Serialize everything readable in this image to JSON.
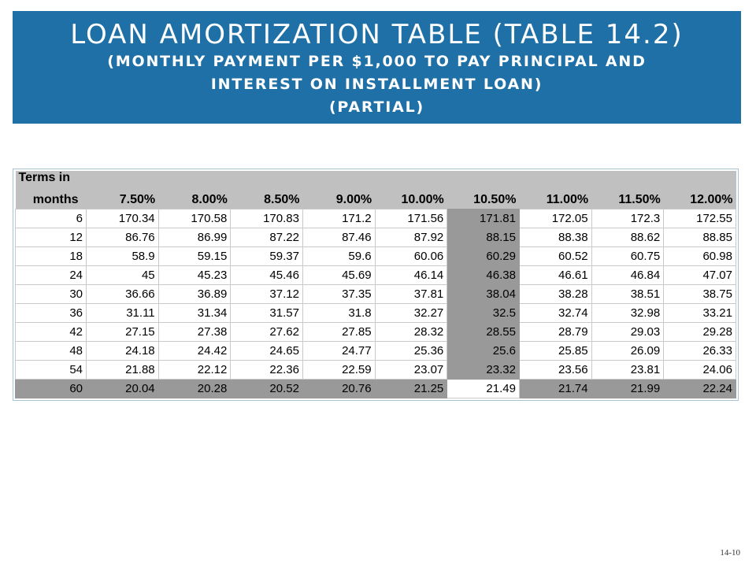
{
  "title": {
    "main": "LOAN AMORTIZATION TABLE (TABLE 14.2)",
    "sub_line1": "(MONTHLY PAYMENT PER $1,000 TO PAY PRINCIPAL AND",
    "sub_line2": "INTEREST ON INSTALLMENT LOAN)",
    "sub_line3": "(PARTIAL)"
  },
  "table": {
    "term_header_line1": "Terms in",
    "term_header_line2": "months",
    "rates": [
      "7.50%",
      "8.00%",
      "8.50%",
      "9.00%",
      "10.00%",
      "10.50%",
      "11.00%",
      "11.50%",
      "12.00%"
    ],
    "highlight_rate_index": 5,
    "highlight_term": "60",
    "rows": [
      {
        "term": "6",
        "values": [
          "170.34",
          "170.58",
          "170.83",
          "171.2",
          "171.56",
          "171.81",
          "172.05",
          "172.3",
          "172.55"
        ]
      },
      {
        "term": "12",
        "values": [
          "86.76",
          "86.99",
          "87.22",
          "87.46",
          "87.92",
          "88.15",
          "88.38",
          "88.62",
          "88.85"
        ]
      },
      {
        "term": "18",
        "values": [
          "58.9",
          "59.15",
          "59.37",
          "59.6",
          "60.06",
          "60.29",
          "60.52",
          "60.75",
          "60.98"
        ]
      },
      {
        "term": "24",
        "values": [
          "45",
          "45.23",
          "45.46",
          "45.69",
          "46.14",
          "46.38",
          "46.61",
          "46.84",
          "47.07"
        ]
      },
      {
        "term": "30",
        "values": [
          "36.66",
          "36.89",
          "37.12",
          "37.35",
          "37.81",
          "38.04",
          "38.28",
          "38.51",
          "38.75"
        ]
      },
      {
        "term": "36",
        "values": [
          "31.11",
          "31.34",
          "31.57",
          "31.8",
          "32.27",
          "32.5",
          "32.74",
          "32.98",
          "33.21"
        ]
      },
      {
        "term": "42",
        "values": [
          "27.15",
          "27.38",
          "27.62",
          "27.85",
          "28.32",
          "28.55",
          "28.79",
          "29.03",
          "29.28"
        ]
      },
      {
        "term": "48",
        "values": [
          "24.18",
          "24.42",
          "24.65",
          "24.77",
          "25.36",
          "25.6",
          "25.85",
          "26.09",
          "26.33"
        ]
      },
      {
        "term": "54",
        "values": [
          "21.88",
          "22.12",
          "22.36",
          "22.59",
          "23.07",
          "23.32",
          "23.56",
          "23.81",
          "24.06"
        ]
      },
      {
        "term": "60",
        "values": [
          "20.04",
          "20.28",
          "20.52",
          "20.76",
          "21.25",
          "21.49",
          "21.74",
          "21.99",
          "22.24"
        ]
      }
    ]
  },
  "slide_number": "14-10",
  "colors": {
    "banner": "#1e70a6",
    "header_gray": "#c0c0c0",
    "highlight_gray": "#999999"
  }
}
